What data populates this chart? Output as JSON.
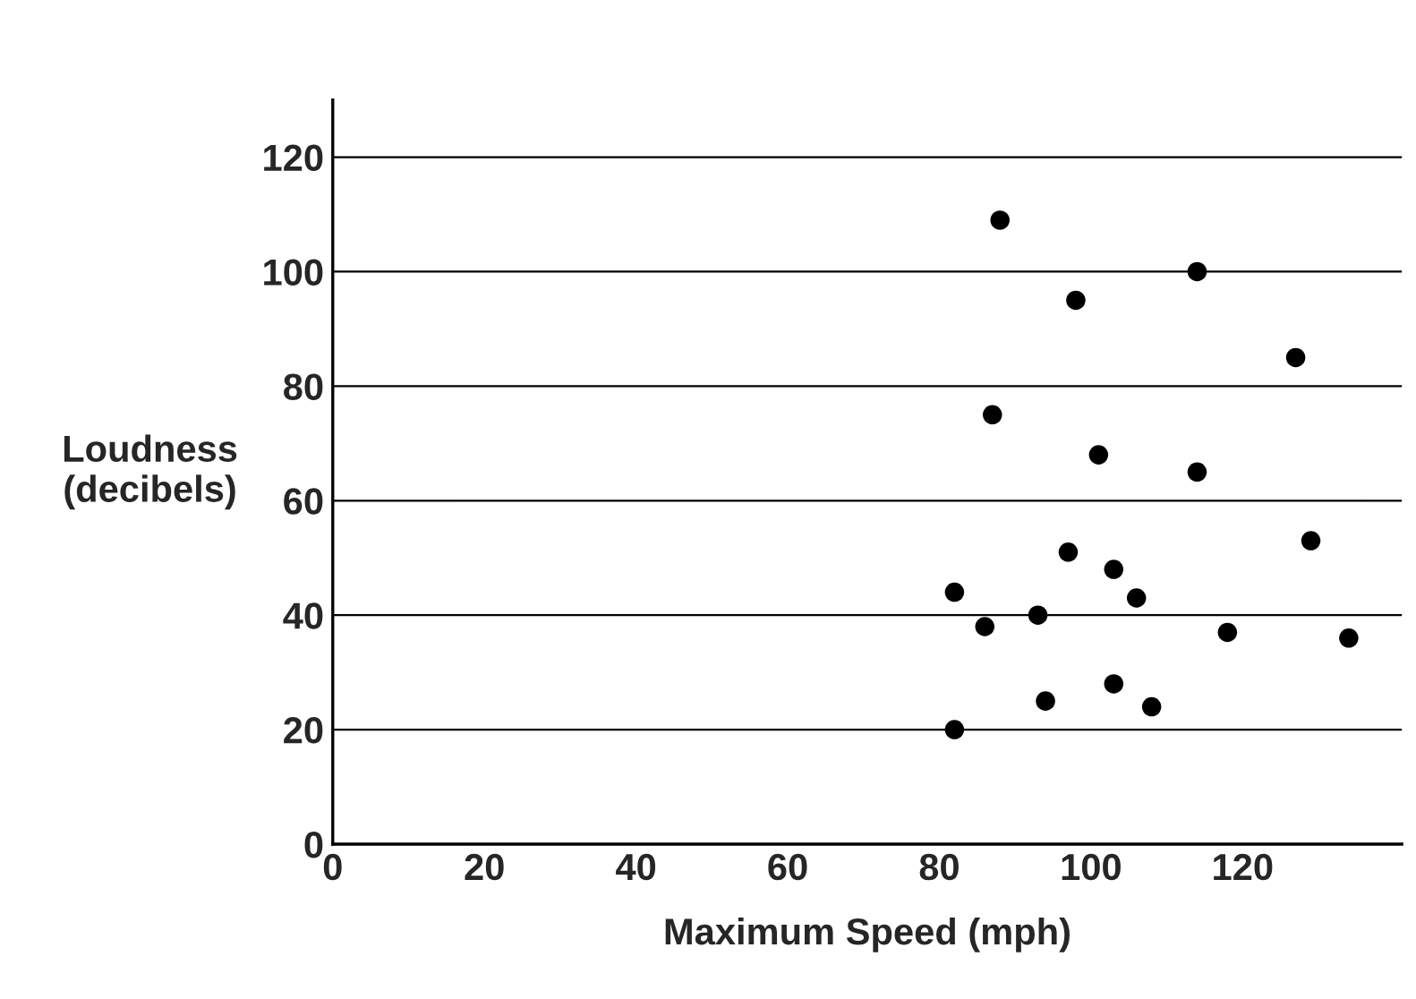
{
  "chart_data": {
    "type": "scatter",
    "xlabel": "Maximum Speed (mph)",
    "ylabel": "Loudness\n(decibels)",
    "x": [
      88,
      114,
      98,
      127,
      87,
      101,
      114,
      129,
      97,
      82,
      103,
      106,
      86,
      93,
      118,
      134,
      94,
      103,
      108,
      82
    ],
    "series": [
      {
        "color": "#000000",
        "values": [
          109,
          100,
          95,
          85,
          75,
          68,
          65,
          53,
          51,
          44,
          48,
          43,
          38,
          40,
          37,
          36,
          25,
          28,
          24,
          20
        ]
      }
    ],
    "xlim": [
      0,
      141
    ],
    "ylim": [
      0,
      130
    ],
    "xticks": [
      0,
      20,
      40,
      60,
      80,
      100,
      120
    ],
    "yticks": [
      0,
      20,
      40,
      60,
      80,
      100,
      120
    ],
    "grid": "y",
    "marker": "circle"
  }
}
